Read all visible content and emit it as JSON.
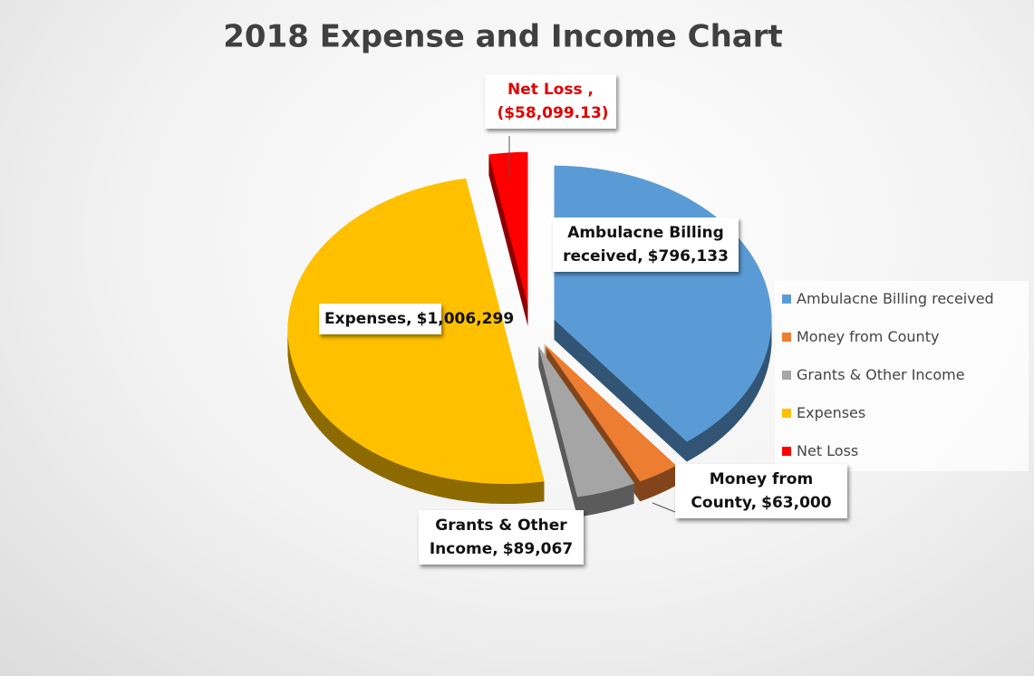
{
  "chart_data": {
    "type": "pie",
    "title": "2018 Expense and Income Chart",
    "categories": [
      "Ambulacne Billing received",
      "Money from County",
      "Grants & Other Income",
      "Expenses",
      "Net Loss"
    ],
    "values": [
      796133,
      63000,
      89067,
      1006299,
      58099.13
    ],
    "value_labels": [
      "$796,133",
      "$63,000",
      "$89,067",
      "$1,006,299",
      "($58,099.13)"
    ],
    "label_names": [
      "Ambulacne Billing received,",
      "Money from County,",
      "Grants & Other Income,",
      "Expenses,",
      "Net Loss ,"
    ],
    "colors": [
      "#5b9bd5",
      "#ed7d31",
      "#a5a5a5",
      "#ffc000",
      "#ff0000"
    ],
    "legend": "right"
  }
}
